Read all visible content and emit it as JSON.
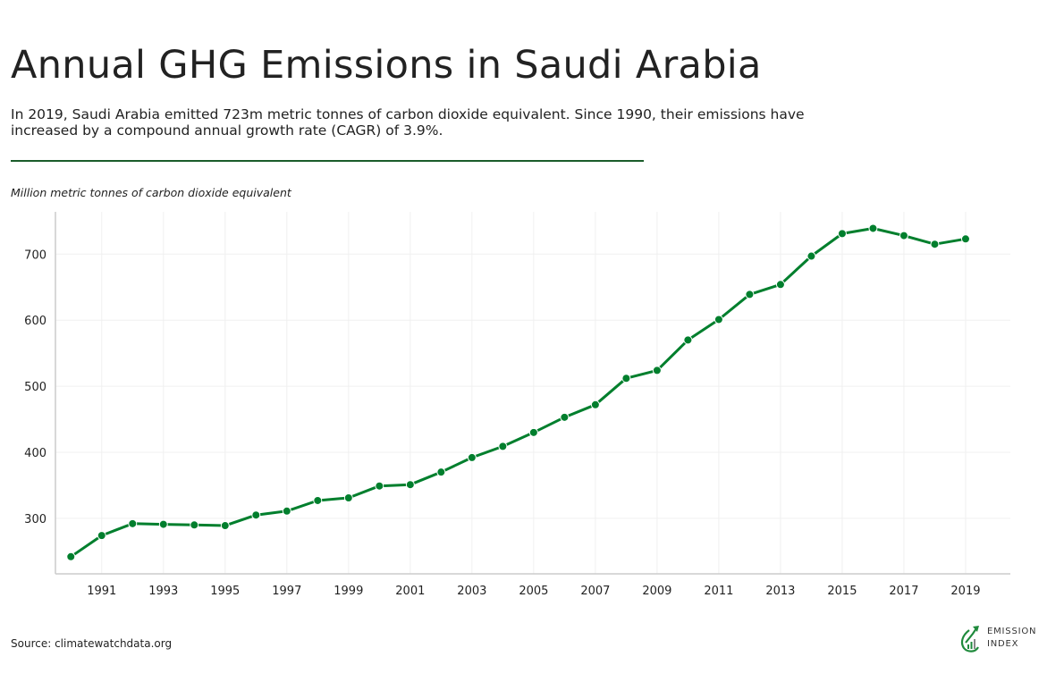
{
  "header": {
    "title": "Annual GHG Emissions in Saudi Arabia",
    "subtitle": "In 2019, Saudi Arabia emitted 723m metric tonnes of carbon dioxide equivalent. Since 1990, their emissions have increased by a compound annual growth rate (CAGR) of 3.9%."
  },
  "footer": {
    "source": "Source: climatewatchdata.org",
    "logo_line1": "EMISSION",
    "logo_line2": "INDEX"
  },
  "colors": {
    "line": "#007f2d",
    "rule": "#1a5c2a",
    "grid": "#f0f0f0",
    "axis": "#cccccc"
  },
  "chart_data": {
    "type": "line",
    "ylabel": "Million metric tonnes of carbon dioxide equivalent",
    "xlabel": "",
    "x": [
      1990,
      1991,
      1992,
      1993,
      1994,
      1995,
      1996,
      1997,
      1998,
      1999,
      2000,
      2001,
      2002,
      2003,
      2004,
      2005,
      2006,
      2007,
      2008,
      2009,
      2010,
      2011,
      2012,
      2013,
      2014,
      2015,
      2016,
      2017,
      2018,
      2019
    ],
    "series": [
      {
        "values": [
          242,
          274,
          292,
          291,
          290,
          289,
          305,
          311,
          327,
          331,
          349,
          351,
          370,
          392,
          409,
          430,
          453,
          472,
          512,
          524,
          570,
          601,
          639,
          654,
          697,
          731,
          739,
          728,
          715,
          723
        ]
      }
    ],
    "xticks": [
      "1991",
      "1993",
      "1995",
      "1997",
      "1999",
      "2001",
      "2003",
      "2005",
      "2007",
      "2009",
      "2011",
      "2013",
      "2015",
      "2017",
      "2019"
    ],
    "yticks": [
      "300",
      "400",
      "500",
      "600",
      "700"
    ],
    "ylim": [
      216,
      764
    ],
    "xlim": [
      1989.5,
      2020.45
    ],
    "grid": true,
    "markers": true
  }
}
